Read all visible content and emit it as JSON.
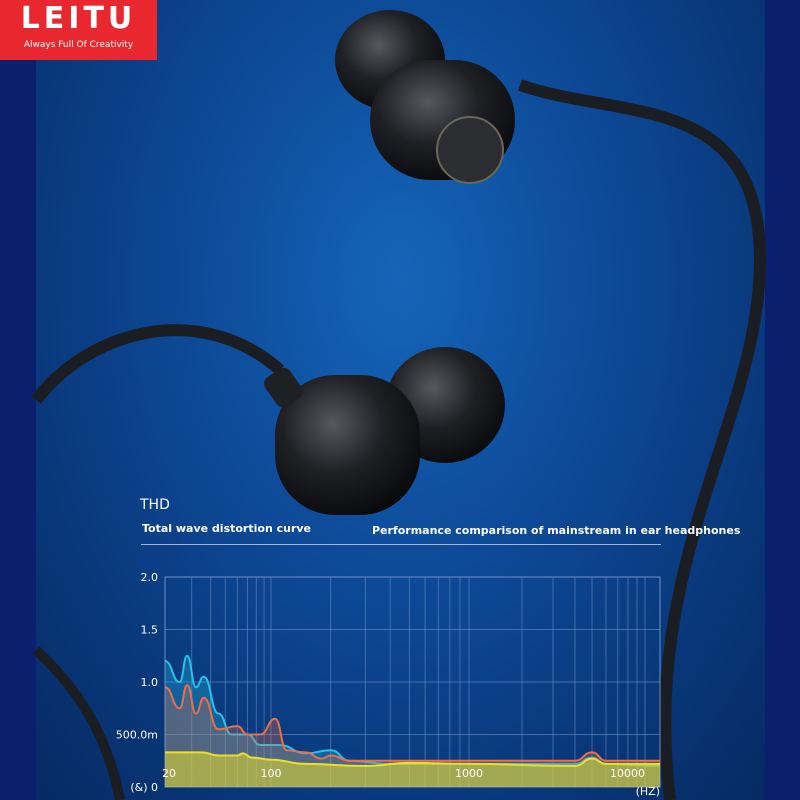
{
  "logo": {
    "brand": "LEITU",
    "tagline": "Always Full Of Creativity",
    "color": "#e8272e"
  },
  "heading": {
    "title": "THD",
    "subtitle": "Total wave distortion curve",
    "comparison": "Performance comparison of mainstream in ear headphones"
  },
  "chart_data": {
    "type": "area",
    "x_scale": "log",
    "xlim": [
      20,
      12000
    ],
    "ylim": [
      0,
      2.0
    ],
    "grid": true,
    "x_ticks": [
      {
        "value": 20,
        "label": "20"
      },
      {
        "value": 100,
        "label": "100"
      },
      {
        "value": 1000,
        "label": "1000"
      },
      {
        "value": 10000,
        "label": "10000"
      }
    ],
    "x_unit": "(HZ)",
    "y_ticks": [
      {
        "value": 0,
        "label": "(&) 0"
      },
      {
        "value": 0.5,
        "label": "500.0m"
      },
      {
        "value": 1.0,
        "label": "1.0"
      },
      {
        "value": 1.5,
        "label": "1.5"
      },
      {
        "value": 2.0,
        "label": "2.0"
      }
    ],
    "series": [
      {
        "color": "#25c3e8",
        "points": [
          [
            20,
            1.2
          ],
          [
            25,
            1.0
          ],
          [
            28,
            1.25
          ],
          [
            32,
            0.95
          ],
          [
            36,
            1.05
          ],
          [
            45,
            0.7
          ],
          [
            55,
            0.5
          ],
          [
            70,
            0.5
          ],
          [
            85,
            0.4
          ],
          [
            110,
            0.4
          ],
          [
            150,
            0.32
          ],
          [
            200,
            0.35
          ],
          [
            250,
            0.25
          ],
          [
            400,
            0.22
          ],
          [
            1000,
            0.22
          ],
          [
            4000,
            0.22
          ],
          [
            5000,
            0.28
          ],
          [
            6000,
            0.22
          ],
          [
            12000,
            0.2
          ]
        ]
      },
      {
        "color": "#e8704a",
        "points": [
          [
            20,
            0.95
          ],
          [
            25,
            0.75
          ],
          [
            28,
            0.97
          ],
          [
            32,
            0.7
          ],
          [
            36,
            0.85
          ],
          [
            45,
            0.55
          ],
          [
            60,
            0.58
          ],
          [
            70,
            0.5
          ],
          [
            85,
            0.5
          ],
          [
            105,
            0.65
          ],
          [
            120,
            0.35
          ],
          [
            150,
            0.33
          ],
          [
            180,
            0.27
          ],
          [
            200,
            0.3
          ],
          [
            250,
            0.25
          ],
          [
            1000,
            0.25
          ],
          [
            4000,
            0.25
          ],
          [
            5000,
            0.33
          ],
          [
            6000,
            0.25
          ],
          [
            12000,
            0.25
          ]
        ]
      },
      {
        "color": "#e8e02a",
        "points": [
          [
            20,
            0.33
          ],
          [
            35,
            0.33
          ],
          [
            45,
            0.3
          ],
          [
            60,
            0.3
          ],
          [
            65,
            0.32
          ],
          [
            75,
            0.28
          ],
          [
            100,
            0.26
          ],
          [
            150,
            0.22
          ],
          [
            300,
            0.2
          ],
          [
            500,
            0.23
          ],
          [
            1000,
            0.22
          ],
          [
            4000,
            0.2
          ],
          [
            5000,
            0.27
          ],
          [
            6000,
            0.22
          ],
          [
            12000,
            0.22
          ]
        ]
      }
    ]
  }
}
